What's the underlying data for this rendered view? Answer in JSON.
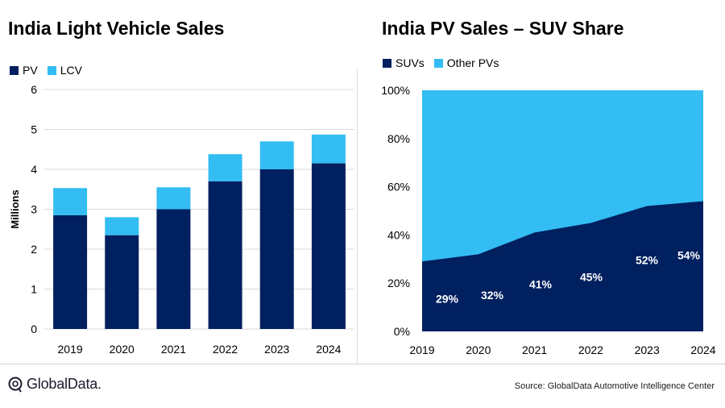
{
  "left_chart_title": "India Light Vehicle Sales",
  "right_chart_title": "India PV Sales – SUV Share",
  "source": "Source: GlobalData Automotive Intelligence Center",
  "logo_text": "GlobalData.",
  "colors": {
    "dark": "#002060",
    "light": "#33BDF2",
    "grid": "#d9d9d9"
  },
  "chart_data": [
    {
      "type": "bar",
      "stacked": true,
      "title": "India Light Vehicle Sales",
      "categories": [
        "2019",
        "2020",
        "2021",
        "2022",
        "2023",
        "2024"
      ],
      "series": [
        {
          "name": "PV",
          "color": "#002060",
          "values": [
            2.85,
            2.35,
            3.0,
            3.7,
            4.0,
            4.15
          ]
        },
        {
          "name": "LCV",
          "color": "#33BDF2",
          "values": [
            0.68,
            0.45,
            0.55,
            0.68,
            0.7,
            0.72
          ]
        }
      ],
      "xlabel": "",
      "ylabel": "Millions",
      "ylim": [
        0,
        6
      ],
      "yticks": [
        "0",
        "1",
        "2",
        "3",
        "4",
        "5",
        "6"
      ],
      "grid": true,
      "legend": "top-left"
    },
    {
      "type": "area",
      "stacked": true,
      "title": "India PV Sales – SUV Share",
      "x": [
        "2019",
        "2020",
        "2021",
        "2022",
        "2023",
        "2024"
      ],
      "series": [
        {
          "name": "SUVs",
          "color": "#002060",
          "values": [
            29,
            32,
            41,
            45,
            52,
            54
          ]
        },
        {
          "name": "Other PVs",
          "color": "#33BDF2",
          "values": [
            71,
            68,
            59,
            55,
            48,
            46
          ]
        }
      ],
      "data_labels": [
        "29%",
        "32%",
        "41%",
        "45%",
        "52%",
        "54%"
      ],
      "ylim": [
        0,
        100
      ],
      "yticks": [
        "0%",
        "20%",
        "40%",
        "60%",
        "80%",
        "100%"
      ],
      "grid": false,
      "legend": "top-left"
    }
  ]
}
